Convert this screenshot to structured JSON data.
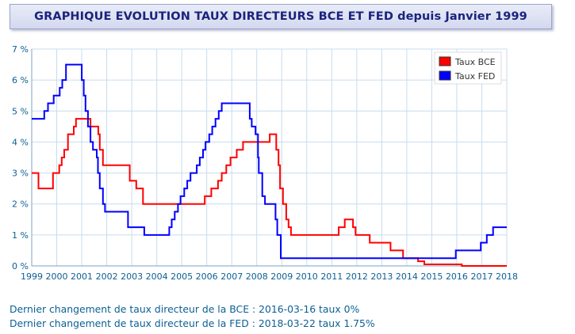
{
  "header": {
    "title": "GRAPHIQUE EVOLUTION TAUX DIRECTEURS BCE ET FED depuis Janvier 1999"
  },
  "footer": {
    "bce_line": "Dernier changement de taux directeur de la BCE : 2016-03-16 taux 0%",
    "fed_line": "Dernier changement de taux directeur de la FED : 2018-03-22 taux 1.75%"
  },
  "chart_data": {
    "type": "line",
    "step": true,
    "xlim": [
      1999,
      2018
    ],
    "ylim": [
      0,
      7
    ],
    "x_ticks": [
      1999,
      2000,
      2001,
      2002,
      2003,
      2004,
      2005,
      2006,
      2007,
      2008,
      2009,
      2010,
      2011,
      2012,
      2013,
      2014,
      2015,
      2016,
      2017,
      2018
    ],
    "y_ticks": [
      "0 %",
      "1 %",
      "2 %",
      "3 %",
      "4 %",
      "5 %",
      "6 %",
      "7 %"
    ],
    "grid": true,
    "legend_position": "top-right",
    "colors": {
      "bce": "#ff0000",
      "fed": "#0000ff",
      "grid": "#c7dcef",
      "tick": "#0b5f94"
    },
    "series": [
      {
        "name": "Taux BCE",
        "color": "#ff0000",
        "points": [
          [
            1999.0,
            3.0
          ],
          [
            1999.27,
            2.5
          ],
          [
            1999.85,
            3.0
          ],
          [
            2000.1,
            3.25
          ],
          [
            2000.2,
            3.5
          ],
          [
            2000.3,
            3.75
          ],
          [
            2000.45,
            4.25
          ],
          [
            2000.68,
            4.5
          ],
          [
            2000.77,
            4.75
          ],
          [
            2001.35,
            4.5
          ],
          [
            2001.66,
            4.25
          ],
          [
            2001.72,
            3.75
          ],
          [
            2001.85,
            3.25
          ],
          [
            2002.92,
            2.75
          ],
          [
            2003.18,
            2.5
          ],
          [
            2003.45,
            2.0
          ],
          [
            2005.92,
            2.25
          ],
          [
            2006.18,
            2.5
          ],
          [
            2006.45,
            2.75
          ],
          [
            2006.6,
            3.0
          ],
          [
            2006.78,
            3.25
          ],
          [
            2006.95,
            3.5
          ],
          [
            2007.2,
            3.75
          ],
          [
            2007.45,
            4.0
          ],
          [
            2008.52,
            4.25
          ],
          [
            2008.78,
            3.75
          ],
          [
            2008.87,
            3.25
          ],
          [
            2008.93,
            2.5
          ],
          [
            2009.05,
            2.0
          ],
          [
            2009.18,
            1.5
          ],
          [
            2009.27,
            1.25
          ],
          [
            2009.37,
            1.0
          ],
          [
            2011.28,
            1.25
          ],
          [
            2011.52,
            1.5
          ],
          [
            2011.85,
            1.25
          ],
          [
            2011.95,
            1.0
          ],
          [
            2012.52,
            0.75
          ],
          [
            2013.35,
            0.5
          ],
          [
            2013.85,
            0.25
          ],
          [
            2014.45,
            0.15
          ],
          [
            2014.7,
            0.05
          ],
          [
            2016.2,
            0.0
          ],
          [
            2018.0,
            0.0
          ]
        ]
      },
      {
        "name": "Taux FED",
        "color": "#0000ff",
        "points": [
          [
            1999.0,
            4.75
          ],
          [
            1999.5,
            5.0
          ],
          [
            1999.65,
            5.25
          ],
          [
            1999.88,
            5.5
          ],
          [
            2000.12,
            5.75
          ],
          [
            2000.22,
            6.0
          ],
          [
            2000.37,
            6.5
          ],
          [
            2001.0,
            6.0
          ],
          [
            2001.08,
            5.5
          ],
          [
            2001.15,
            5.0
          ],
          [
            2001.25,
            4.5
          ],
          [
            2001.35,
            4.0
          ],
          [
            2001.45,
            3.75
          ],
          [
            2001.6,
            3.5
          ],
          [
            2001.65,
            3.0
          ],
          [
            2001.72,
            2.5
          ],
          [
            2001.85,
            2.0
          ],
          [
            2001.93,
            1.75
          ],
          [
            2002.85,
            1.25
          ],
          [
            2003.5,
            1.0
          ],
          [
            2004.5,
            1.25
          ],
          [
            2004.6,
            1.5
          ],
          [
            2004.72,
            1.75
          ],
          [
            2004.85,
            2.0
          ],
          [
            2004.95,
            2.25
          ],
          [
            2005.1,
            2.5
          ],
          [
            2005.22,
            2.75
          ],
          [
            2005.35,
            3.0
          ],
          [
            2005.6,
            3.25
          ],
          [
            2005.72,
            3.5
          ],
          [
            2005.85,
            3.75
          ],
          [
            2005.95,
            4.0
          ],
          [
            2006.1,
            4.25
          ],
          [
            2006.22,
            4.5
          ],
          [
            2006.35,
            4.75
          ],
          [
            2006.48,
            5.0
          ],
          [
            2006.6,
            5.25
          ],
          [
            2007.72,
            4.75
          ],
          [
            2007.8,
            4.5
          ],
          [
            2007.95,
            4.25
          ],
          [
            2008.05,
            3.5
          ],
          [
            2008.08,
            3.0
          ],
          [
            2008.22,
            2.25
          ],
          [
            2008.33,
            2.0
          ],
          [
            2008.75,
            1.5
          ],
          [
            2008.82,
            1.0
          ],
          [
            2008.96,
            0.25
          ],
          [
            2015.96,
            0.5
          ],
          [
            2016.96,
            0.75
          ],
          [
            2017.2,
            1.0
          ],
          [
            2017.45,
            1.25
          ],
          [
            2018.0,
            1.25
          ]
        ]
      }
    ]
  }
}
